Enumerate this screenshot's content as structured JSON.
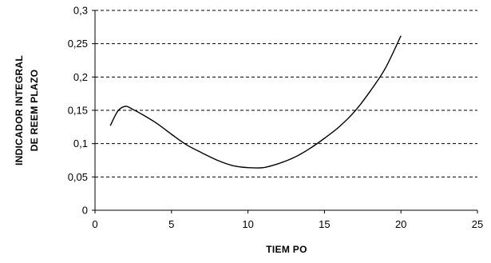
{
  "chart_data": {
    "type": "line",
    "title": "",
    "xlabel": "TIEM PO",
    "ylabel": [
      "INDICADOR INTEGRAL",
      "DE REEM PLAZO"
    ],
    "xlim": [
      0,
      25
    ],
    "ylim": [
      0,
      0.3
    ],
    "x_ticks": [
      0,
      5,
      10,
      15,
      20,
      25
    ],
    "x_tick_labels": [
      "0",
      "5",
      "10",
      "15",
      "20",
      "25"
    ],
    "y_ticks": [
      0,
      0.05,
      0.1,
      0.15,
      0.2,
      0.25,
      0.3
    ],
    "y_tick_labels": [
      "0",
      "0,05",
      "0,1",
      "0,15",
      "0,2",
      "0,25",
      "0,3"
    ],
    "grid": "horizontal dashed",
    "legend": "none",
    "series": [
      {
        "color": "#000000",
        "x": [
          1,
          1.5,
          2,
          2.5,
          3,
          4,
          5,
          6,
          7,
          8,
          9,
          10,
          11,
          12,
          13,
          14,
          15,
          16,
          17,
          18,
          19,
          20
        ],
        "y": [
          0.127,
          0.149,
          0.156,
          0.151,
          0.145,
          0.131,
          0.114,
          0.098,
          0.086,
          0.075,
          0.067,
          0.064,
          0.064,
          0.07,
          0.079,
          0.092,
          0.108,
          0.126,
          0.149,
          0.179,
          0.214,
          0.262
        ]
      }
    ]
  }
}
